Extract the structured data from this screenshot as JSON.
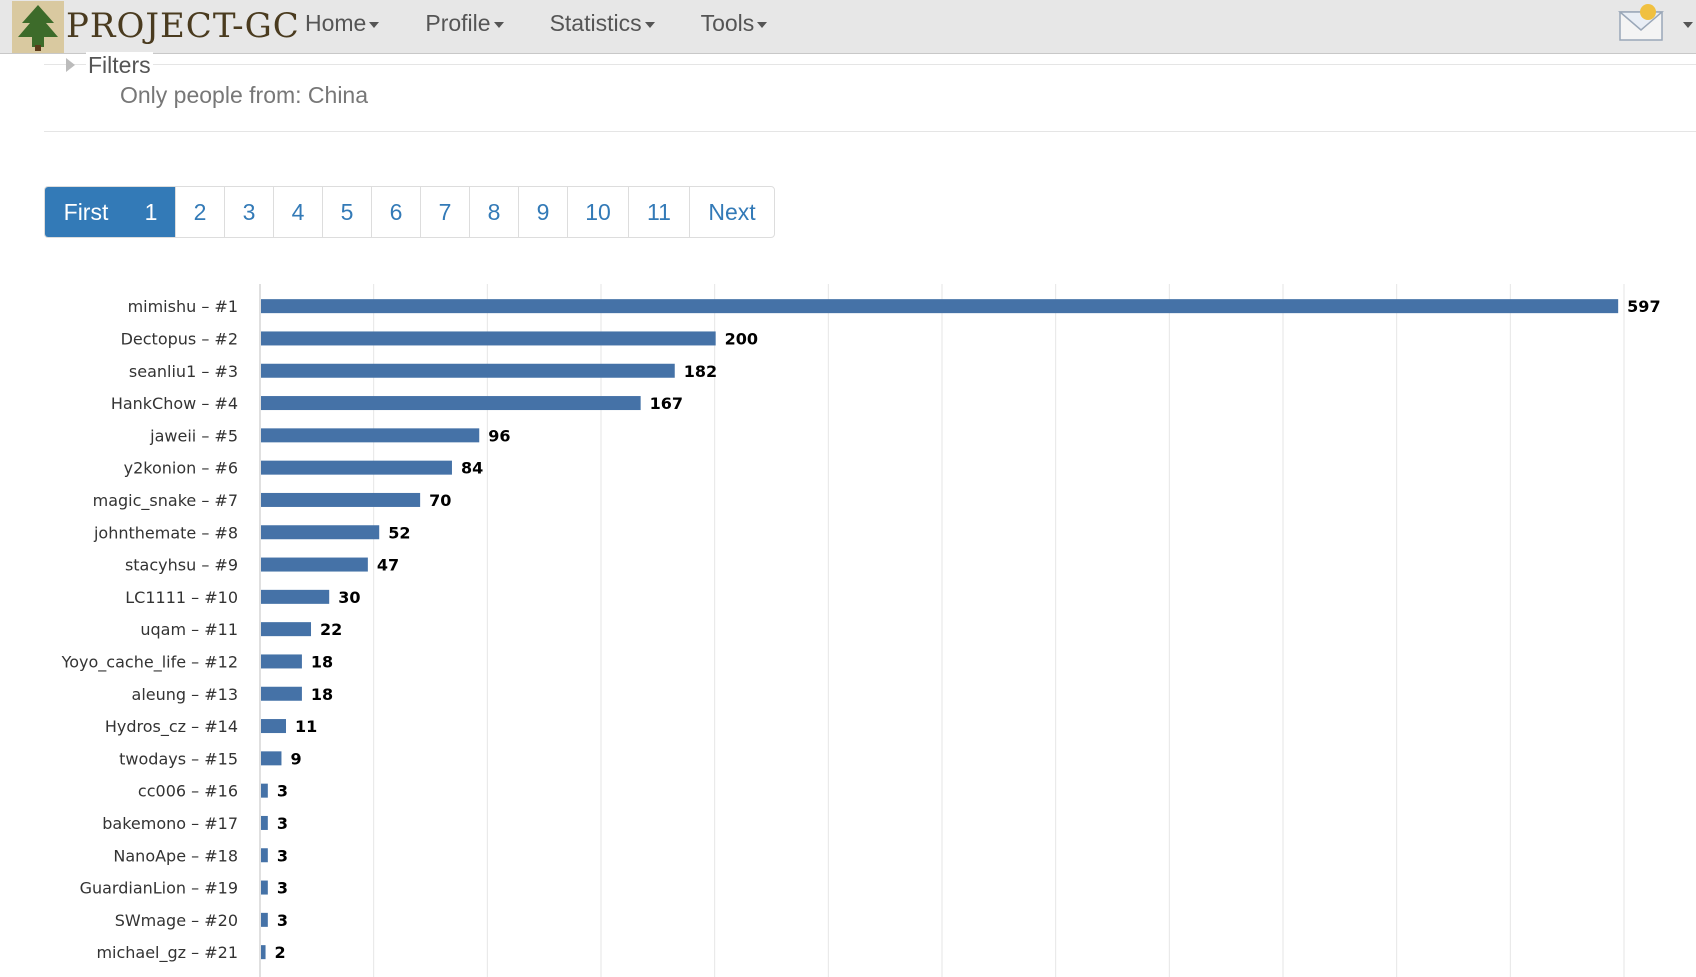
{
  "header": {
    "logo_text": "PROJECT-GC",
    "nav": [
      {
        "label": "Home"
      },
      {
        "label": "Profile"
      },
      {
        "label": "Statistics"
      },
      {
        "label": "Tools"
      }
    ]
  },
  "filters": {
    "label": "Filters",
    "text": "Only people from: China"
  },
  "pagination": {
    "items": [
      "First",
      "1",
      "2",
      "3",
      "4",
      "5",
      "6",
      "7",
      "8",
      "9",
      "10",
      "11",
      "Next"
    ],
    "active": [
      "First",
      "1"
    ]
  },
  "chart_data": {
    "type": "bar",
    "orientation": "horizontal",
    "categories": [
      "mimishu – #1",
      "Dectopus – #2",
      "seanliu1 – #3",
      "HankChow – #4",
      "jaweii – #5",
      "y2konion – #6",
      "magic_snake – #7",
      "johnthemate – #8",
      "stacyhsu – #9",
      "LC1111 – #10",
      "uqam – #11",
      "Yoyo_cache_life – #12",
      "aleung – #13",
      "Hydros_cz – #14",
      "twodays – #15",
      "cc006 – #16",
      "bakemono – #17",
      "NanoApe – #18",
      "GuardianLion – #19",
      "SWmage – #20",
      "michael_gz – #21"
    ],
    "values": [
      597,
      200,
      182,
      167,
      96,
      84,
      70,
      52,
      47,
      30,
      22,
      18,
      18,
      11,
      9,
      3,
      3,
      3,
      3,
      3,
      2
    ],
    "xlim": [
      0,
      600
    ],
    "grid": true,
    "bar_color": "#4572a7"
  }
}
